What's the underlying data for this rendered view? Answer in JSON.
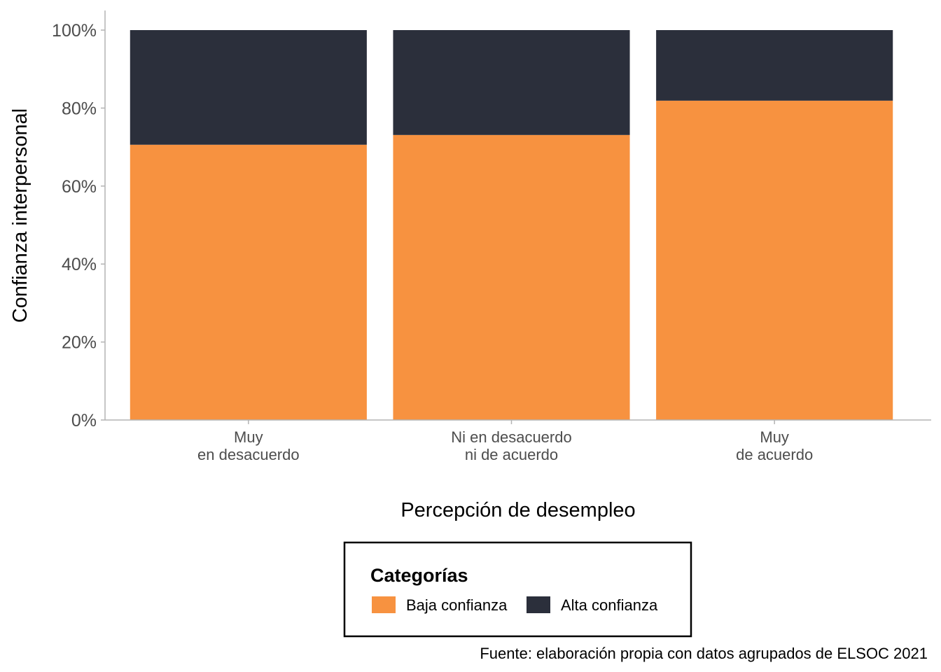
{
  "chart_data": {
    "type": "bar",
    "stacked": true,
    "percent": true,
    "categories": [
      [
        "Muy",
        "en desacuerdo"
      ],
      [
        "Ni en desacuerdo",
        "ni de acuerdo"
      ],
      [
        "Muy",
        "de acuerdo"
      ]
    ],
    "series": [
      {
        "name": "Baja confianza",
        "color": "#f79240",
        "values": [
          70.6,
          73.1,
          81.9
        ]
      },
      {
        "name": "Alta confianza",
        "color": "#2b2f3b",
        "values": [
          29.4,
          26.9,
          18.1
        ]
      }
    ],
    "xlabel": "Percepción de desempleo",
    "ylabel": "Confianza interpersonal",
    "ylim": [
      0,
      100
    ],
    "yticks": [
      "0%",
      "20%",
      "40%",
      "60%",
      "80%",
      "100%"
    ],
    "ytick_values": [
      0,
      20,
      40,
      60,
      80,
      100
    ],
    "grid": false,
    "legend": {
      "title": "Categorías",
      "position": "bottom"
    },
    "caption": "Fuente: elaboración propia con datos agrupados de ELSOC 2021"
  }
}
